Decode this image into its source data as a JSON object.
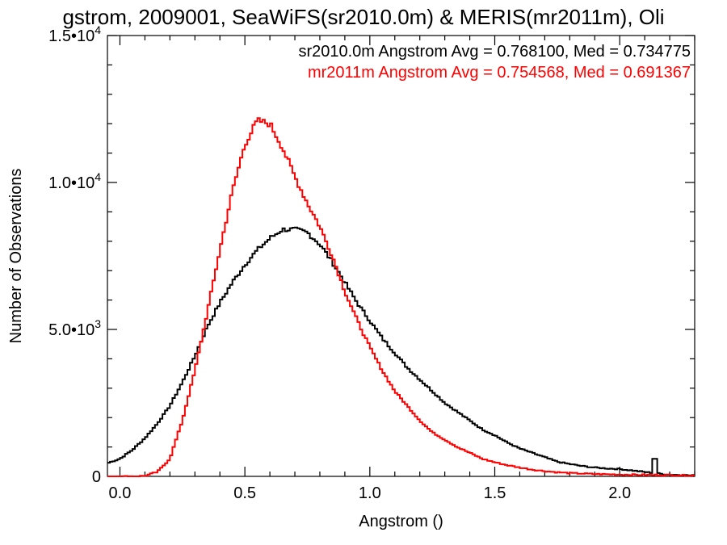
{
  "chart_data": {
    "type": "line",
    "title": "gstrom, 2009001, SeaWiFS(sr2010.0m) & MERIS(mr2011m), Oli",
    "xlabel": "Angstrom ()",
    "ylabel": "Number of Observations",
    "xlim": [
      -0.05,
      2.3
    ],
    "ylim": [
      0,
      15000
    ],
    "x_ticks": [
      0.0,
      0.5,
      1.0,
      1.5,
      2.0
    ],
    "x_tick_labels": [
      "0.0",
      "0.5",
      "1.0",
      "1.5",
      "2.0"
    ],
    "y_ticks": [
      0,
      5000,
      10000,
      15000
    ],
    "y_tick_labels": [
      {
        "mantissa": "0",
        "exp": ""
      },
      {
        "mantissa": "5.0•10",
        "exp": "3"
      },
      {
        "mantissa": "1.0•10",
        "exp": "4"
      },
      {
        "mantissa": "1.5•10",
        "exp": "4"
      }
    ],
    "grid": false,
    "legend_position": "top-right",
    "series": [
      {
        "name": "sr2010.0m Angstrom Avg = 0.768100, Med = 0.734775",
        "color": "#000000",
        "x": [
          -0.05,
          0.0,
          0.05,
          0.1,
          0.15,
          0.2,
          0.25,
          0.3,
          0.35,
          0.4,
          0.45,
          0.5,
          0.55,
          0.6,
          0.65,
          0.7,
          0.75,
          0.8,
          0.85,
          0.9,
          0.95,
          1.0,
          1.05,
          1.1,
          1.15,
          1.2,
          1.25,
          1.3,
          1.35,
          1.4,
          1.45,
          1.5,
          1.55,
          1.6,
          1.65,
          1.7,
          1.75,
          1.8,
          1.85,
          1.9,
          1.95,
          2.0,
          2.05,
          2.1,
          2.15,
          2.2,
          2.3
        ],
        "y": [
          450,
          600,
          900,
          1300,
          1800,
          2400,
          3200,
          4100,
          5100,
          5900,
          6600,
          7200,
          7700,
          8100,
          8400,
          8400,
          8300,
          7900,
          7300,
          6600,
          5900,
          5300,
          4700,
          4200,
          3700,
          3300,
          2900,
          2500,
          2200,
          1900,
          1600,
          1400,
          1150,
          950,
          800,
          650,
          500,
          420,
          350,
          300,
          270,
          250,
          200,
          150,
          100,
          60,
          30
        ],
        "spike": {
          "x": 2.14,
          "y": 600
        }
      },
      {
        "name": "mr2011m Angstrom Avg = 0.754568, Med = 0.691367",
        "color": "#ff0000",
        "x": [
          -0.05,
          0.05,
          0.1,
          0.15,
          0.2,
          0.25,
          0.3,
          0.35,
          0.4,
          0.45,
          0.5,
          0.55,
          0.6,
          0.65,
          0.7,
          0.75,
          0.8,
          0.85,
          0.9,
          0.95,
          1.0,
          1.05,
          1.1,
          1.15,
          1.2,
          1.25,
          1.3,
          1.35,
          1.4,
          1.45,
          1.5,
          1.55,
          1.6,
          1.65,
          1.7,
          1.75,
          1.8,
          1.9,
          2.0,
          2.1,
          2.2,
          2.3
        ],
        "y": [
          0,
          0,
          20,
          150,
          600,
          1900,
          3600,
          5600,
          7700,
          9700,
          11300,
          12100,
          12000,
          11200,
          10200,
          9300,
          8500,
          7500,
          6300,
          5300,
          4400,
          3600,
          2900,
          2400,
          1900,
          1500,
          1250,
          1000,
          800,
          600,
          480,
          380,
          300,
          230,
          180,
          140,
          110,
          80,
          60,
          50,
          40,
          30
        ]
      }
    ]
  }
}
